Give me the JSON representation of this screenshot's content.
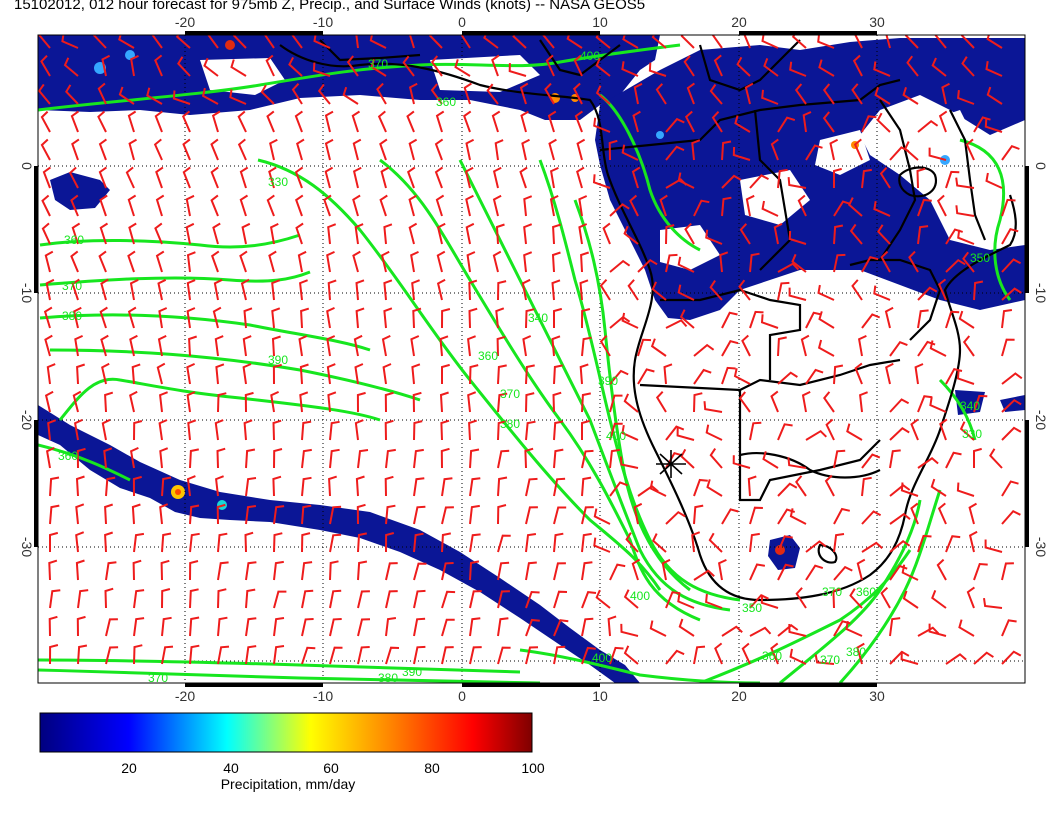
{
  "title": "15102012, 012 hour forecast for 975mb Z, Precip., and Surface Winds (knots) -- NASA GEOS5",
  "map": {
    "lon_ticks": [
      "-20",
      "-10",
      "0",
      "10",
      "20",
      "30"
    ],
    "lat_ticks": [
      "0",
      "-10",
      "-20",
      "-30"
    ],
    "lon_range": [
      -30,
      41
    ],
    "lat_range": [
      -40,
      10
    ],
    "contour_labels": [
      "330",
      "360",
      "370",
      "380",
      "390",
      "360",
      "340",
      "360",
      "370",
      "380",
      "390",
      "400",
      "400",
      "360",
      "370",
      "370",
      "380",
      "390",
      "400",
      "350",
      "360",
      "370",
      "380",
      "340",
      "330",
      "370",
      "360",
      "350",
      "400"
    ],
    "marker": "asterisk-marker",
    "colors": {
      "precip": "#0b1696",
      "contours": "#17e61f",
      "wind_barbs": "#ee1c1c",
      "coastlines": "#000000"
    }
  },
  "colorbar": {
    "ticks": [
      "20",
      "40",
      "60",
      "80",
      "100"
    ],
    "label": "Precipitation, mm/day",
    "range": [
      0,
      100
    ],
    "colors": [
      "#00007f",
      "#0000ff",
      "#00ffff",
      "#ffff00",
      "#ff7f00",
      "#ff0000",
      "#7f0000"
    ]
  }
}
